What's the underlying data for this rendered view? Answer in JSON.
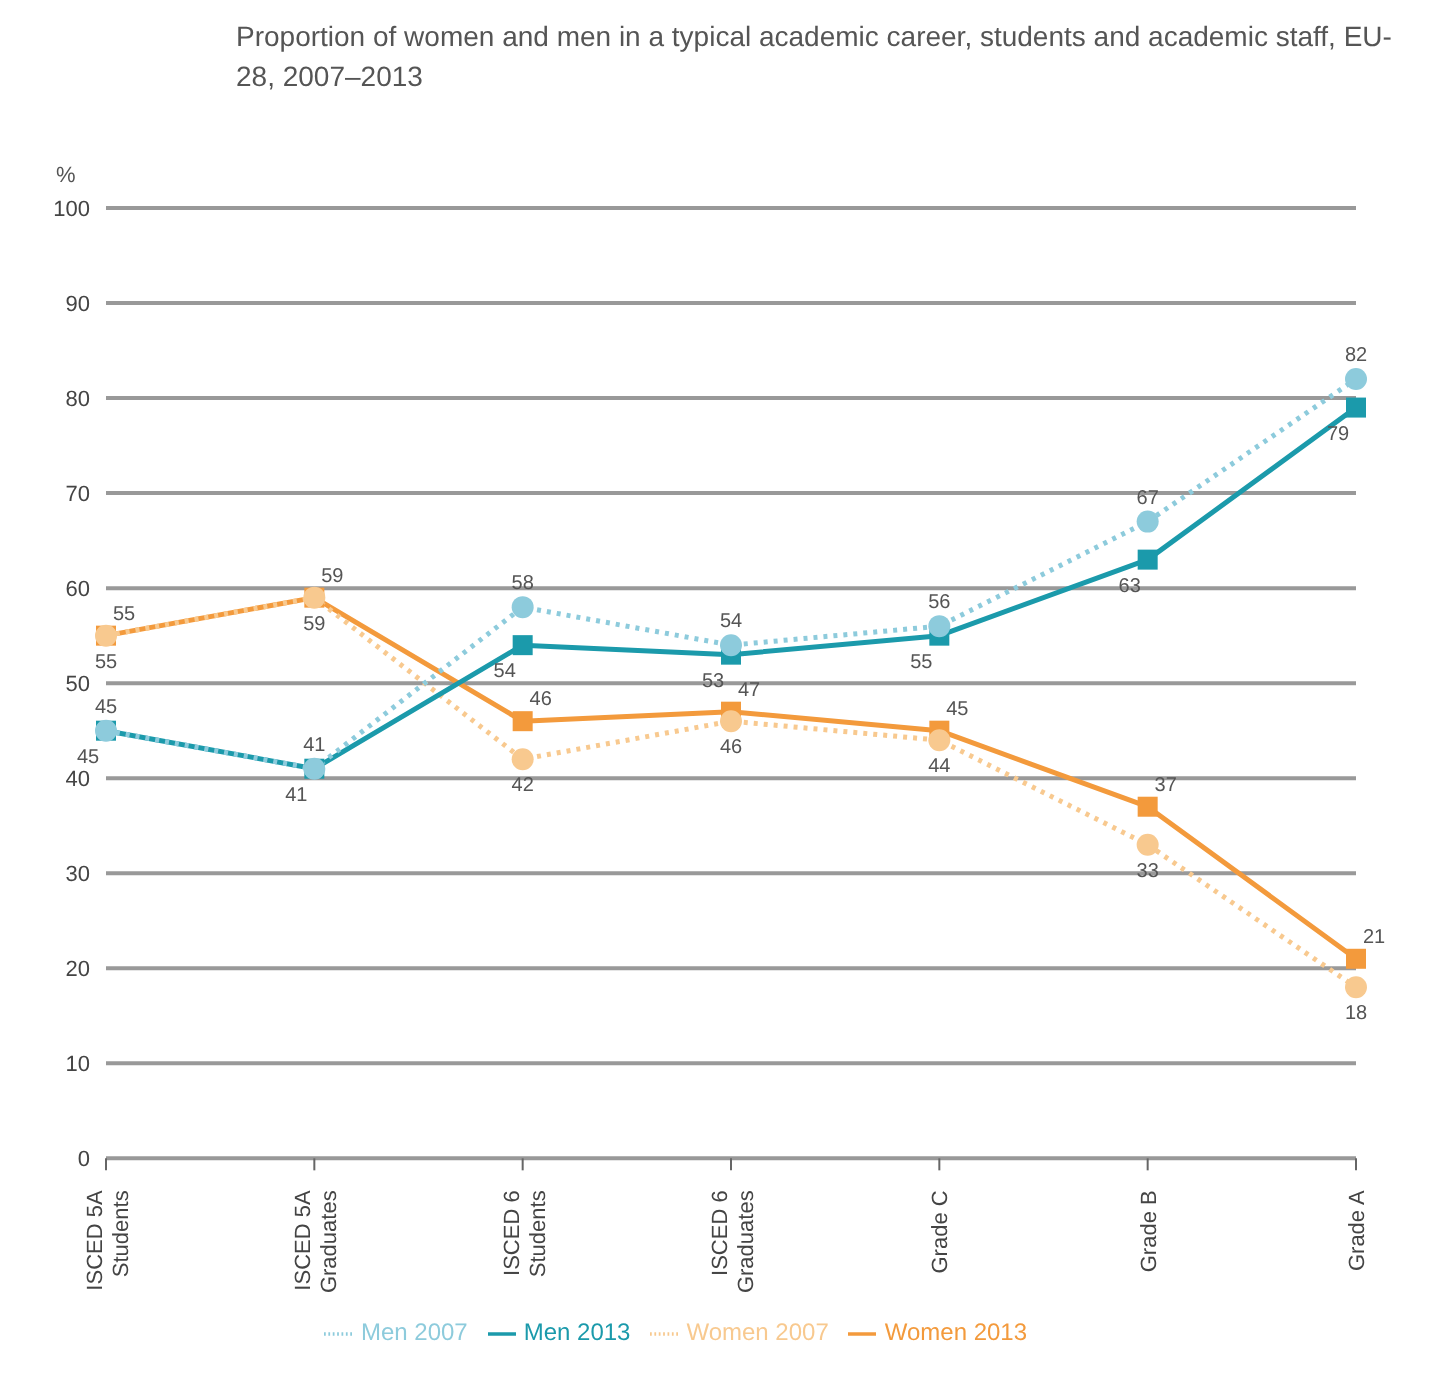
{
  "chart_data": {
    "type": "line",
    "title": "Proportion of women and men in a typical academic career, students and academic staff, EU-28, 2007–2013",
    "ylabel": "%",
    "categories": [
      "ISCED 5A Students",
      "ISCED 5A Graduates",
      "ISCED 6 Students",
      "ISCED 6 Graduates",
      "Grade C",
      "Grade B",
      "Grade A"
    ],
    "series": [
      {
        "name": "Women 2013",
        "color": "#f39a3c",
        "marker": "square",
        "line_style": "solid",
        "values": [
          55,
          59,
          46,
          47,
          45,
          37,
          21
        ]
      },
      {
        "name": "Women 2007",
        "color": "#f8c98f",
        "marker": "circle",
        "line_style": "dotted",
        "values": [
          55,
          59,
          42,
          46,
          44,
          33,
          18
        ]
      },
      {
        "name": "Men 2013",
        "color": "#1b9aab",
        "marker": "square",
        "line_style": "solid",
        "values": [
          45,
          41,
          54,
          53,
          55,
          63,
          79
        ]
      },
      {
        "name": "Men 2007",
        "color": "#8dcbdc",
        "marker": "circle",
        "line_style": "dotted",
        "values": [
          45,
          41,
          58,
          54,
          56,
          67,
          82
        ]
      }
    ],
    "ylim": [
      0,
      100
    ],
    "yticks": [
      0,
      10,
      20,
      30,
      40,
      50,
      60,
      70,
      80,
      90,
      100
    ],
    "grid": "y",
    "legend": "bottom",
    "data_labels": true
  }
}
